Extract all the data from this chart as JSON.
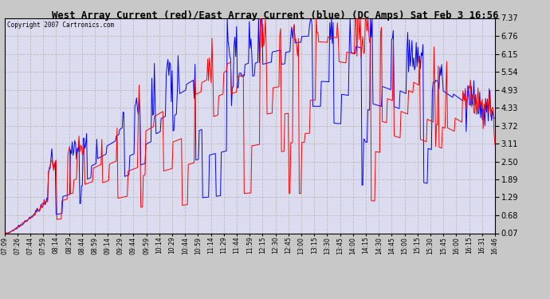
{
  "title": "West Array Current (red)/East Array Current (blue) (DC Amps) Sat Feb 3 16:56",
  "copyright_text": "Copyright 2007 Cartronics.com",
  "yticks": [
    0.07,
    0.68,
    1.29,
    1.89,
    2.5,
    3.11,
    3.72,
    4.33,
    4.93,
    5.54,
    6.15,
    6.76,
    7.37
  ],
  "xtick_labels": [
    "07:09",
    "07:26",
    "07:44",
    "07:59",
    "08:14",
    "08:29",
    "08:44",
    "08:59",
    "09:14",
    "09:29",
    "09:44",
    "09:59",
    "10:14",
    "10:29",
    "10:44",
    "10:59",
    "11:14",
    "11:29",
    "11:44",
    "11:59",
    "12:15",
    "12:30",
    "12:45",
    "13:00",
    "13:15",
    "13:30",
    "13:45",
    "14:00",
    "14:15",
    "14:30",
    "14:45",
    "15:00",
    "15:15",
    "15:30",
    "15:45",
    "16:00",
    "16:15",
    "16:31",
    "16:46"
  ],
  "ymin": 0.07,
  "ymax": 7.37,
  "red_color": "#ff0000",
  "blue_color": "#0000ff",
  "grid_color": "#bbbbbb",
  "title_bg": "#c8c8c8",
  "plot_bg": "#dcdcf0",
  "fig_bg": "#c8c8c8"
}
